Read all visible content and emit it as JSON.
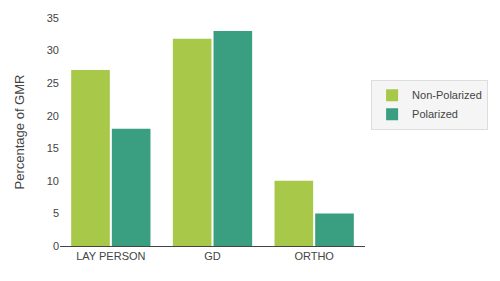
{
  "chart_data": {
    "type": "bar",
    "categories": [
      "LAY PERSON",
      "GD",
      "ORTHO"
    ],
    "series": [
      {
        "name": "Non-Polarized",
        "color": "#a8c84a",
        "values": [
          27,
          31.8,
          10
        ]
      },
      {
        "name": "Polarized",
        "color": "#3a9e80",
        "values": [
          18,
          33,
          5
        ]
      }
    ],
    "ylabel": "Percentage of GMR",
    "ylim": [
      0,
      35
    ],
    "yticks": [
      0,
      5,
      10,
      15,
      20,
      25,
      30,
      35
    ],
    "grid": false,
    "legend": "right"
  }
}
